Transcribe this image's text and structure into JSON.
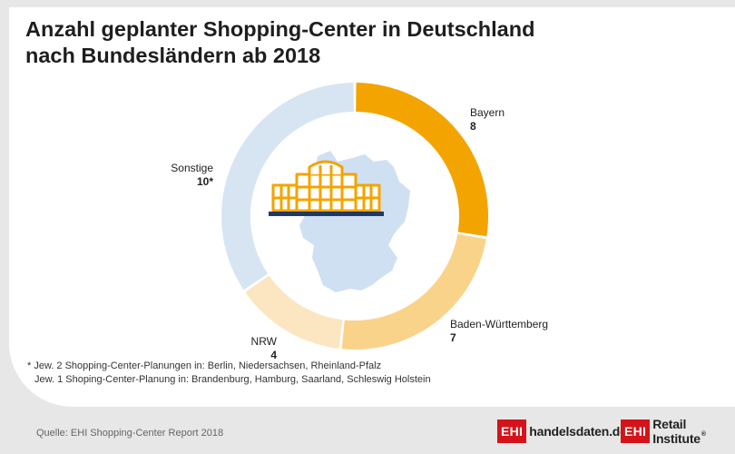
{
  "title_line1": "Anzahl geplanter Shopping-Center in Deutschland",
  "title_line2": "nach Bundesländern ab 2018",
  "chart_data": {
    "type": "pie",
    "variant": "donut",
    "title": "Anzahl geplanter Shopping-Center in Deutschland nach Bundesländern ab 2018",
    "series": [
      {
        "name": "Bayern",
        "value": 8,
        "display": "8",
        "color": "#f3a400"
      },
      {
        "name": "Baden-Württemberg",
        "value": 7,
        "display": "7",
        "color": "#fad38b"
      },
      {
        "name": "NRW",
        "value": 4,
        "display": "4",
        "color": "#fce6c1"
      },
      {
        "name": "Sonstige",
        "value": 10,
        "display": "10*",
        "color": "#d7e5f3"
      }
    ]
  },
  "center_icon": "shopping-center-building-icon",
  "background_shape": "germany-map",
  "footnote": {
    "line1": "*  Jew. 2 Shopping-Center-Planungen in: Berlin, Niedersachsen, Rheinland-Pfalz",
    "line2": "Jew. 1 Shoping-Center-Planung in: Brandenburg, Hamburg, Saarland, Schleswig Holstein"
  },
  "source": "Quelle: EHI Shopping-Center Report 2018",
  "logos": {
    "left_box": "EHI",
    "left_text": "handelsdaten.de",
    "right_box": "EHI",
    "right_text": "Retail Institute",
    "right_mark": "®"
  },
  "colors": {
    "bayern": "#f3a400",
    "bw": "#fad38b",
    "nrw": "#fce6c1",
    "sonstige": "#d7e5f3",
    "map": "#cfe0f3",
    "icon": "#f3a400",
    "icon_base": "#1f3a63",
    "brand_red": "#d5131a"
  }
}
